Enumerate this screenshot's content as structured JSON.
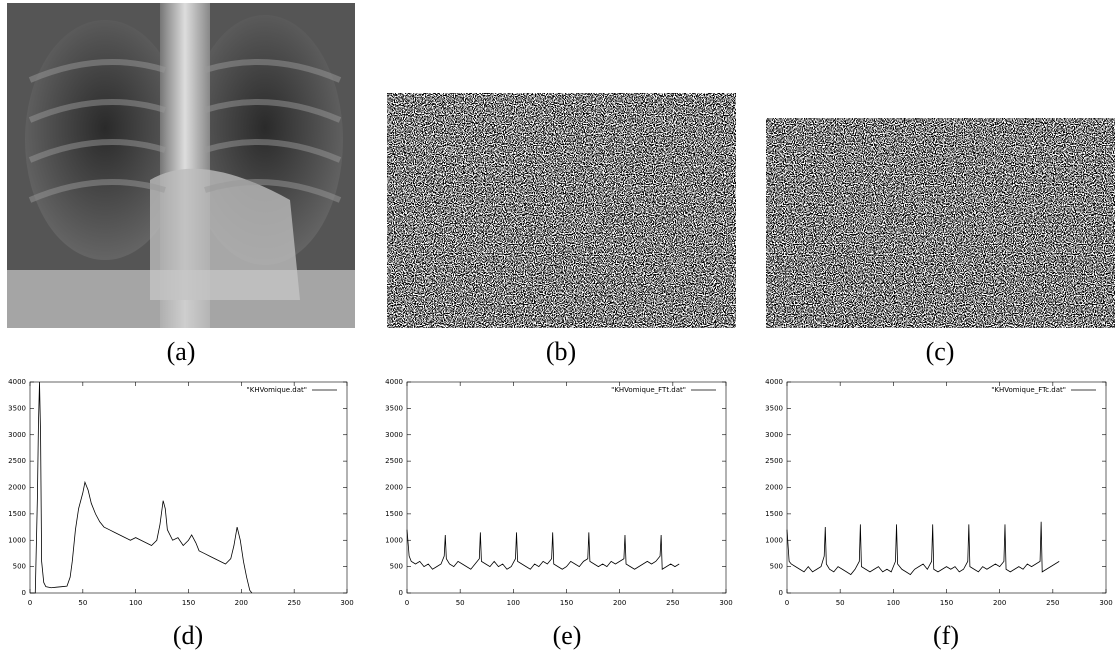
{
  "captions": [
    "(a)",
    "(b)",
    "(c)",
    "(d)",
    "(e)",
    "(f)"
  ],
  "chart_data": [
    {
      "type": "line",
      "xlim": [
        0,
        300
      ],
      "xticks": [
        0,
        50,
        100,
        150,
        200,
        250,
        300
      ],
      "ylim": [
        0,
        4000
      ],
      "yticks": [
        0,
        500,
        1000,
        1500,
        2000,
        2500,
        3000,
        3500,
        4000
      ],
      "legend": "upper right",
      "grid": false,
      "x": [
        0,
        5,
        7,
        8,
        9,
        10,
        11,
        13,
        15,
        20,
        25,
        30,
        35,
        38,
        40,
        43,
        46,
        50,
        52,
        55,
        58,
        62,
        66,
        70,
        75,
        80,
        85,
        90,
        95,
        100,
        105,
        110,
        115,
        120,
        123,
        126,
        128,
        130,
        135,
        140,
        145,
        150,
        153,
        157,
        160,
        165,
        170,
        175,
        180,
        185,
        190,
        193,
        196,
        199,
        202,
        205,
        208,
        210
      ],
      "series": [
        {
          "name": "\"KHVomique.dat\"",
          "color": "#000000",
          "values": [
            0,
            0,
            1800,
            3200,
            4000,
            3000,
            600,
            200,
            120,
            100,
            110,
            120,
            130,
            300,
            600,
            1200,
            1600,
            1900,
            2100,
            1950,
            1700,
            1500,
            1350,
            1250,
            1200,
            1150,
            1100,
            1050,
            1000,
            1050,
            1000,
            950,
            900,
            1000,
            1300,
            1750,
            1600,
            1200,
            1000,
            1050,
            900,
            1000,
            1100,
            950,
            800,
            750,
            700,
            650,
            600,
            550,
            650,
            900,
            1250,
            1000,
            600,
            300,
            50,
            0
          ]
        }
      ]
    },
    {
      "type": "line",
      "xlim": [
        0,
        300
      ],
      "xticks": [
        0,
        50,
        100,
        150,
        200,
        250,
        300
      ],
      "ylim": [
        0,
        4000
      ],
      "yticks": [
        0,
        500,
        1000,
        1500,
        2000,
        2500,
        3000,
        3500,
        4000
      ],
      "legend": "upper right",
      "grid": false,
      "x": [
        0,
        2,
        4,
        8,
        12,
        16,
        20,
        24,
        28,
        32,
        35,
        36,
        37,
        40,
        44,
        48,
        52,
        56,
        60,
        64,
        68,
        69,
        70,
        74,
        78,
        82,
        86,
        90,
        94,
        98,
        102,
        103,
        104,
        108,
        112,
        116,
        120,
        124,
        128,
        132,
        136,
        137,
        138,
        142,
        146,
        150,
        154,
        158,
        162,
        166,
        170,
        171,
        172,
        176,
        180,
        184,
        188,
        192,
        196,
        200,
        204,
        205,
        206,
        210,
        214,
        218,
        222,
        226,
        230,
        234,
        238,
        239,
        240,
        244,
        248,
        252,
        256
      ],
      "series": [
        {
          "name": "\"KHVomique_FTt.dat\"",
          "color": "#000000",
          "values": [
            1200,
            700,
            600,
            550,
            600,
            500,
            550,
            450,
            500,
            550,
            700,
            1100,
            650,
            550,
            500,
            600,
            550,
            500,
            450,
            550,
            650,
            1150,
            600,
            550,
            500,
            600,
            500,
            550,
            450,
            500,
            650,
            1150,
            600,
            550,
            500,
            450,
            550,
            500,
            600,
            550,
            650,
            1150,
            550,
            500,
            450,
            500,
            600,
            550,
            500,
            600,
            650,
            1150,
            600,
            550,
            500,
            550,
            500,
            600,
            550,
            600,
            650,
            1100,
            550,
            500,
            450,
            500,
            550,
            600,
            550,
            600,
            700,
            1100,
            450,
            500,
            550,
            500,
            550
          ]
        }
      ]
    },
    {
      "type": "line",
      "xlim": [
        0,
        300
      ],
      "xticks": [
        0,
        50,
        100,
        150,
        200,
        250,
        300
      ],
      "ylim": [
        0,
        4000
      ],
      "yticks": [
        0,
        500,
        1000,
        1500,
        2000,
        2500,
        3000,
        3500,
        4000
      ],
      "legend": "upper right",
      "grid": false,
      "x": [
        0,
        2,
        4,
        8,
        12,
        16,
        20,
        24,
        28,
        32,
        35,
        36,
        37,
        40,
        44,
        48,
        52,
        56,
        60,
        64,
        68,
        69,
        70,
        74,
        78,
        82,
        86,
        90,
        94,
        98,
        102,
        103,
        104,
        108,
        112,
        116,
        120,
        124,
        128,
        132,
        136,
        137,
        138,
        142,
        146,
        150,
        154,
        158,
        162,
        166,
        170,
        171,
        172,
        176,
        180,
        184,
        188,
        192,
        196,
        200,
        204,
        205,
        206,
        210,
        214,
        218,
        222,
        226,
        230,
        234,
        238,
        239,
        240,
        244,
        248,
        252,
        256
      ],
      "series": [
        {
          "name": "\"KHVomique_FTc.dat\"",
          "color": "#000000",
          "values": [
            1200,
            600,
            550,
            500,
            450,
            400,
            500,
            400,
            450,
            500,
            700,
            1250,
            550,
            450,
            400,
            500,
            450,
            400,
            350,
            450,
            600,
            1300,
            500,
            450,
            400,
            450,
            500,
            400,
            450,
            400,
            600,
            1300,
            550,
            450,
            400,
            350,
            450,
            500,
            550,
            450,
            600,
            1300,
            450,
            400,
            450,
            500,
            450,
            500,
            400,
            450,
            600,
            1300,
            500,
            450,
            400,
            500,
            450,
            500,
            550,
            500,
            600,
            1300,
            450,
            400,
            450,
            500,
            450,
            550,
            500,
            550,
            600,
            1350,
            400,
            450,
            500,
            550,
            600
          ]
        }
      ]
    }
  ]
}
